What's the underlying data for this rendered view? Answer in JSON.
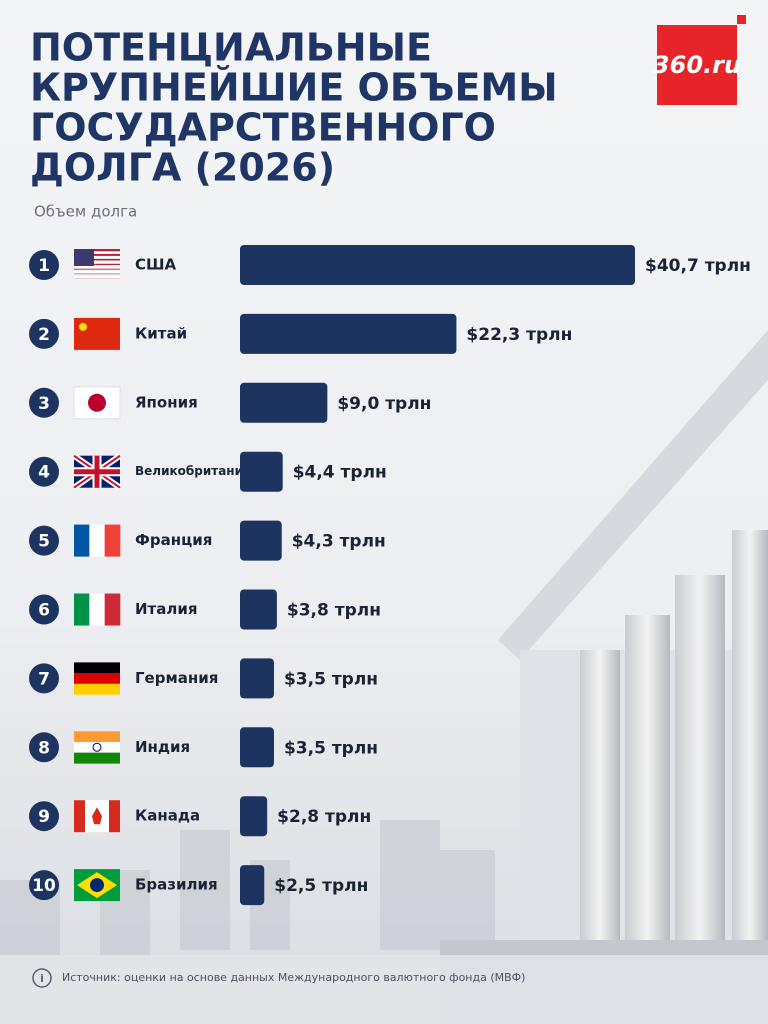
{
  "chart_data": {
    "type": "bar",
    "orientation": "horizontal",
    "title": [
      "ПОТЕНЦИАЛЬНЫЕ",
      "КРУПНЕЙШИЕ ОБЪЕМЫ",
      "ГОСУДАРСТВЕННОГО",
      "ДОЛГА (2026)"
    ],
    "subtitle": "Объем долга",
    "logo": "360.ru",
    "ranks": [
      1,
      2,
      3,
      4,
      5,
      6,
      7,
      8,
      9,
      10
    ],
    "categories": [
      "США",
      "Китай",
      "Япония",
      "Великобритания",
      "Франция",
      "Италия",
      "Германия",
      "Индия",
      "Канада",
      "Бразилия"
    ],
    "values": [
      40.7,
      22.3,
      9.0,
      4.4,
      4.3,
      3.8,
      3.5,
      3.5,
      2.8,
      2.5
    ],
    "value_labels": [
      "$40,7 трлн",
      "$22,3 трлн",
      "$9,0 трлн",
      "$4,4 трлн",
      "$4,3 трлн",
      "$3,8 трлн",
      "$3,5 трлн",
      "$3,5 трлн",
      "$2,8 трлн",
      "$2,5 трлн"
    ],
    "color": "#1d3461",
    "source": "Источник: оценки на основе данных Международного валютного фонда (МВФ)"
  }
}
